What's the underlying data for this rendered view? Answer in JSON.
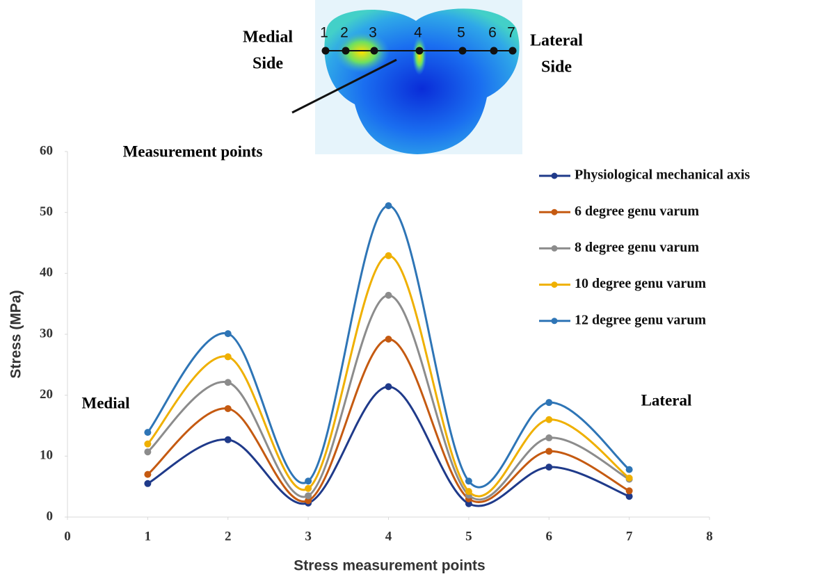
{
  "chart_data": {
    "type": "line",
    "smooth": true,
    "x_label": "Stress measurement points",
    "y_label": "Stress (MPa)",
    "x": [
      1,
      2,
      3,
      4,
      5,
      6,
      7
    ],
    "xlim": [
      0,
      8
    ],
    "xticks": [
      0,
      1,
      2,
      3,
      4,
      5,
      6,
      7,
      8
    ],
    "ylim": [
      0,
      60
    ],
    "yticks": [
      0,
      10,
      20,
      30,
      40,
      50,
      60
    ],
    "grid": false,
    "legend": "upper right",
    "series": [
      {
        "name": "Physiological mechanical axis",
        "color": "#1f3a8a",
        "values": [
          5.5,
          12.7,
          2.3,
          21.4,
          2.2,
          8.2,
          3.4
        ]
      },
      {
        "name": "6 degree genu varum",
        "color": "#c55a11",
        "values": [
          7.0,
          17.8,
          2.7,
          29.2,
          3.0,
          10.8,
          4.3
        ]
      },
      {
        "name": "8 degree genu varum",
        "color": "#8c8c8c",
        "values": [
          10.7,
          22.1,
          3.5,
          36.4,
          3.6,
          13.0,
          6.2
        ]
      },
      {
        "name": "10 degree genu varum",
        "color": "#efb000",
        "values": [
          12.0,
          26.3,
          4.7,
          42.9,
          4.2,
          16.0,
          6.4
        ]
      },
      {
        "name": "12 degree genu varum",
        "color": "#2e75b6",
        "values": [
          13.9,
          30.1,
          5.9,
          51.1,
          5.9,
          18.8,
          7.8
        ]
      }
    ],
    "annotations": [
      "Measurement points",
      "Medial",
      "Lateral"
    ],
    "inset": {
      "medial_label": [
        "Medial",
        "Side"
      ],
      "lateral_label": [
        "Lateral",
        "Side"
      ],
      "point_labels": [
        "1",
        "2",
        "3",
        "4",
        "5",
        "6",
        "7"
      ]
    }
  }
}
